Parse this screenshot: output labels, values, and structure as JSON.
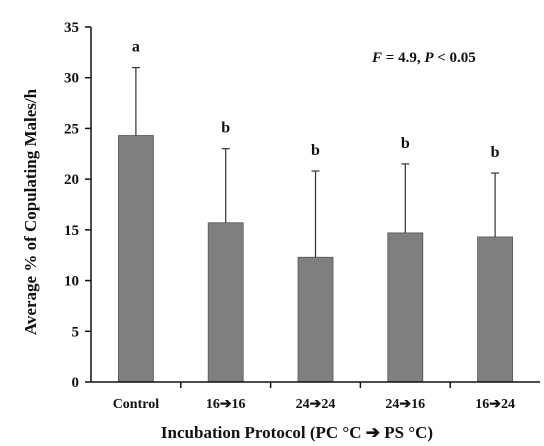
{
  "chart_data": {
    "type": "bar",
    "categories": [
      "Control",
      "16➔16",
      "24➔24",
      "24➔16",
      "16➔24"
    ],
    "values": [
      24.3,
      15.7,
      12.3,
      14.7,
      14.3
    ],
    "errors_upper": [
      31.0,
      23.0,
      20.8,
      21.5,
      20.6
    ],
    "significance_labels": [
      "a",
      "b",
      "b",
      "b",
      "b"
    ],
    "xlabel": "Incubation Protocol (PC °C ➔ PS °C)",
    "ylabel": "Average % of Copulating Males/h",
    "ylim": [
      0,
      35
    ],
    "yticks": [
      "0",
      "5",
      "10",
      "15",
      "20",
      "25",
      "30",
      "35"
    ],
    "annotation": {
      "f_label": "F",
      "f_value": " = 4.9, ",
      "p_label": "P",
      "p_value": " < 0.05"
    },
    "grid": false,
    "bar_color": "#7f7f7f"
  }
}
